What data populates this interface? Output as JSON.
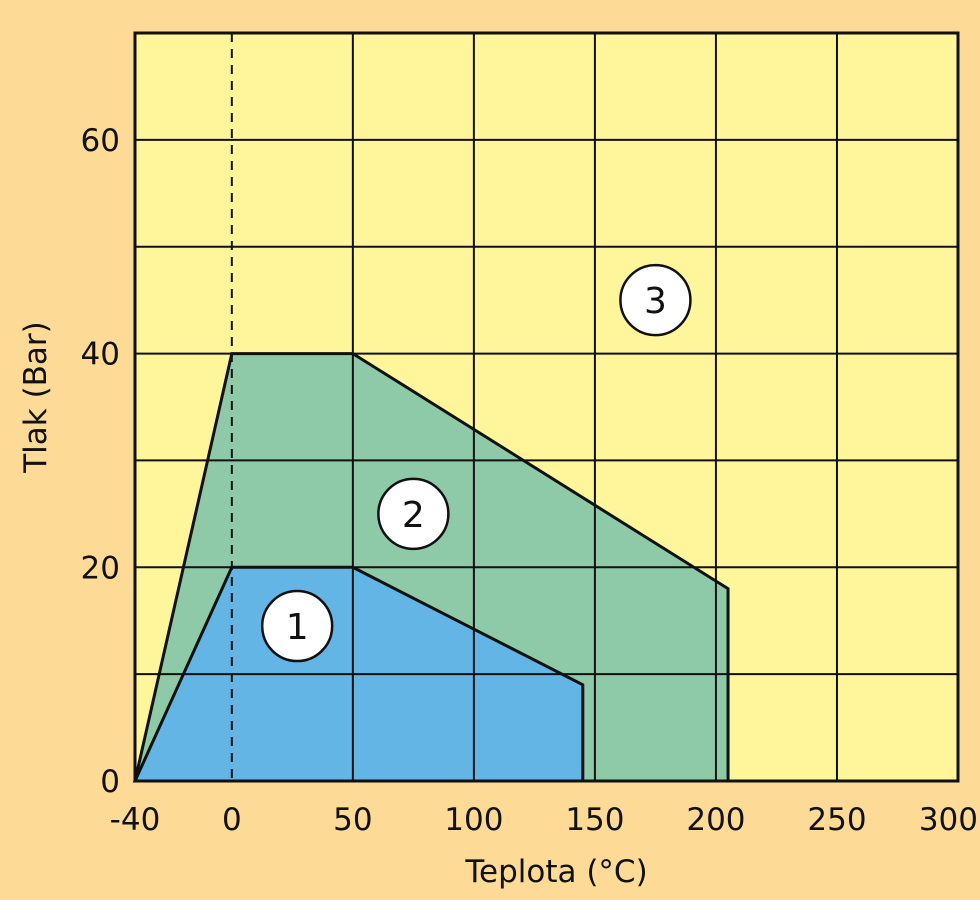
{
  "colors": {
    "page_bg": "#fddb96",
    "plot_bg": "#fff59b",
    "zone_1": "#62b5e5",
    "zone_2": "#8fcaa8",
    "grid": "#111111",
    "marker_fill": "#ffffff"
  },
  "chart_data": {
    "type": "area",
    "title": "",
    "xlabel": "Teplota (°C)",
    "ylabel": "Tlak (Bar)",
    "xlim": [
      -40,
      300
    ],
    "ylim": [
      0,
      70
    ],
    "x_ticks": [
      {
        "value": -40,
        "label": "-40"
      },
      {
        "value": 0,
        "label": "0"
      },
      {
        "value": 50,
        "label": "50"
      },
      {
        "value": 100,
        "label": "100"
      },
      {
        "value": 150,
        "label": "150"
      },
      {
        "value": 200,
        "label": "200"
      },
      {
        "value": 250,
        "label": "250"
      },
      {
        "value": 300,
        "label": "300"
      }
    ],
    "y_ticks": [
      {
        "value": 0,
        "label": "0"
      },
      {
        "value": 20,
        "label": "20"
      },
      {
        "value": 40,
        "label": "40"
      },
      {
        "value": 60,
        "label": "60"
      }
    ],
    "y_grid": [
      0,
      10,
      20,
      30,
      40,
      50,
      60,
      70
    ],
    "grid": true,
    "reference_line": {
      "x": 0,
      "style": "dashed"
    },
    "regions": [
      {
        "label": "2",
        "color": "#8fcaa8",
        "points": [
          [
            -40,
            0
          ],
          [
            0,
            40
          ],
          [
            50,
            40
          ],
          [
            205,
            18
          ],
          [
            205,
            0
          ]
        ],
        "label_at": [
          75,
          25
        ]
      },
      {
        "label": "1",
        "color": "#62b5e5",
        "points": [
          [
            -40,
            0
          ],
          [
            0,
            20
          ],
          [
            50,
            20
          ],
          [
            145,
            9
          ],
          [
            145,
            0
          ]
        ],
        "label_at": [
          27,
          14.5
        ]
      }
    ],
    "outside_label": {
      "label": "3",
      "label_at": [
        175,
        45
      ]
    }
  }
}
